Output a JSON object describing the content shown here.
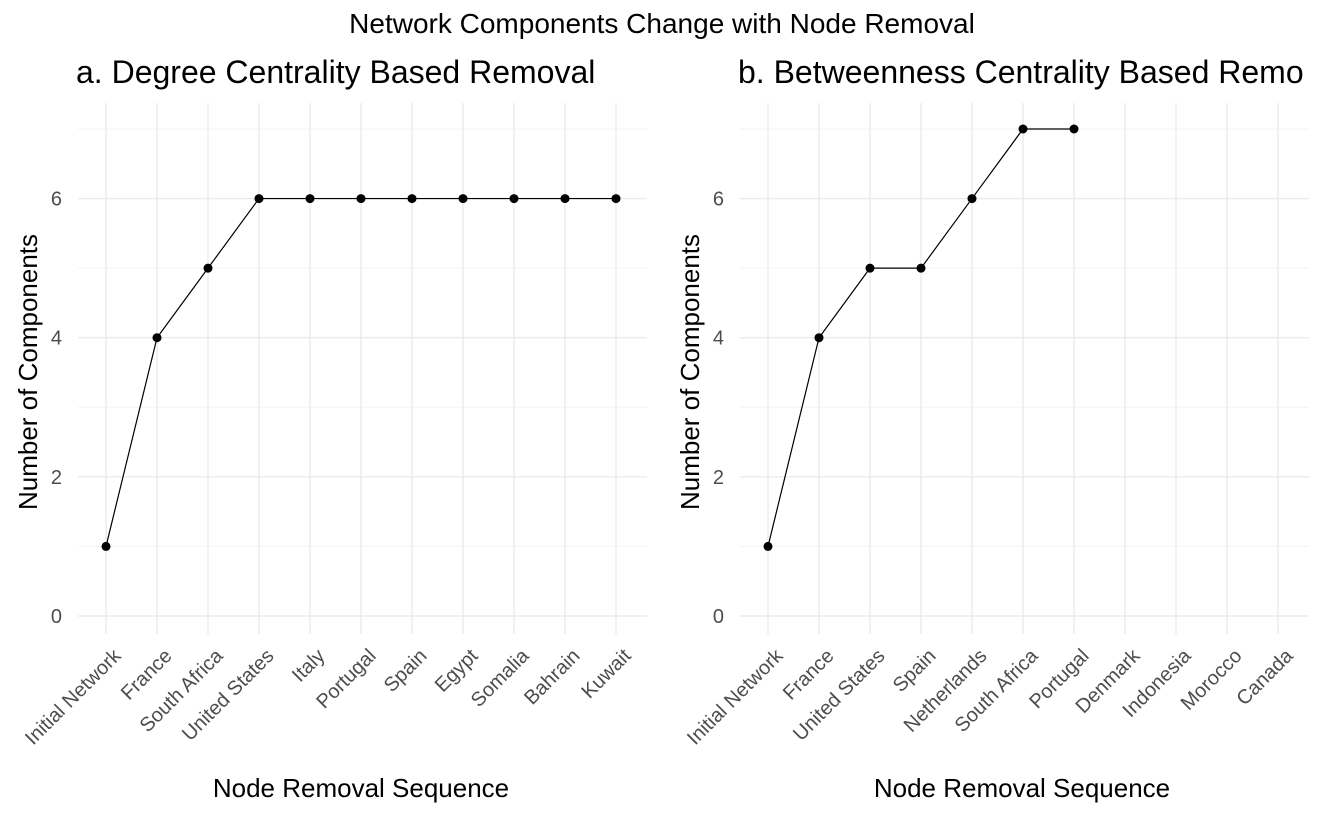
{
  "figure_title": "Network Components Change with Node Removal",
  "chart_data": [
    {
      "type": "line",
      "title": "a. Degree Centrality Based Removal",
      "xlabel": "Node Removal Sequence",
      "ylabel": "Number of Components",
      "categories": [
        "Initial Network",
        "France",
        "South Africa",
        "United States",
        "Italy",
        "Portugal",
        "Spain",
        "Egypt",
        "Somalia",
        "Bahrain",
        "Kuwait"
      ],
      "series": [
        {
          "values": [
            1,
            4,
            5,
            6,
            6,
            6,
            6,
            6,
            6,
            6,
            6
          ]
        }
      ],
      "ylim": [
        0,
        7
      ],
      "yticks": [
        0,
        2,
        4,
        6
      ],
      "grid": true,
      "markers": true
    },
    {
      "type": "line",
      "title": "b. Betweenness Centrality Based Remo",
      "xlabel": "Node Removal Sequence",
      "ylabel": "Number of Components",
      "categories": [
        "Initial Network",
        "France",
        "United States",
        "Spain",
        "Netherlands",
        "South Africa",
        "Portugal",
        "Denmark",
        "Indonesia",
        "Morocco",
        "Canada"
      ],
      "series": [
        {
          "values": [
            1,
            4,
            5,
            5,
            6,
            7,
            7,
            null,
            null,
            null,
            null
          ]
        }
      ],
      "ylim": [
        0,
        7
      ],
      "yticks": [
        0,
        2,
        4,
        6
      ],
      "grid": true,
      "markers": true
    }
  ]
}
